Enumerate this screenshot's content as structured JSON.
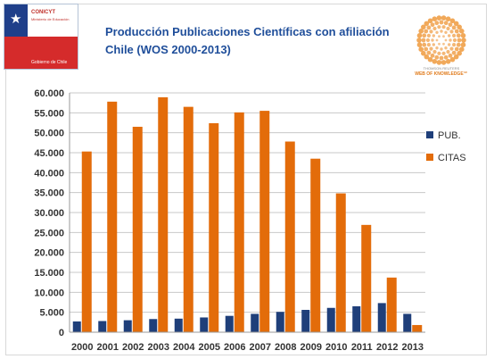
{
  "logo_left": {
    "org_name": "CONICYT",
    "org_sub": "Ministerio de Educación",
    "gov": "Gobierno de Chile"
  },
  "title_line1": "Producción Publicaciones Científicas con afiliación",
  "title_line2": "Chile (WOS 2000-2013)",
  "logo_right": {
    "brand_top": "THOMSON REUTERS",
    "brand_bottom": "WEB OF KNOWLEDGE℠"
  },
  "colors": {
    "pub": "#1f3f7a",
    "citas": "#e36c0a",
    "title": "#1f4e9a"
  },
  "chart_data": {
    "type": "bar",
    "categories": [
      "2000",
      "2001",
      "2002",
      "2003",
      "2004",
      "2005",
      "2006",
      "2007",
      "2008",
      "2009",
      "2010",
      "2011",
      "2012",
      "2013"
    ],
    "series": [
      {
        "name": "PUB.",
        "values": [
          2700,
          2800,
          3000,
          3300,
          3400,
          3700,
          4100,
          4600,
          5100,
          5600,
          6100,
          6500,
          7300,
          4600
        ]
      },
      {
        "name": "CITAS",
        "values": [
          45300,
          57800,
          51500,
          58900,
          56500,
          52400,
          55100,
          55500,
          47800,
          43500,
          34800,
          26900,
          13700,
          1800
        ]
      }
    ],
    "yticks": [
      "60.000",
      "55.000",
      "50.000",
      "45.000",
      "40.000",
      "35.000",
      "30.000",
      "25.000",
      "20.000",
      "15.000",
      "10.000",
      "5.000",
      "0"
    ],
    "ylim": [
      0,
      60000
    ],
    "legend_position": "right"
  }
}
